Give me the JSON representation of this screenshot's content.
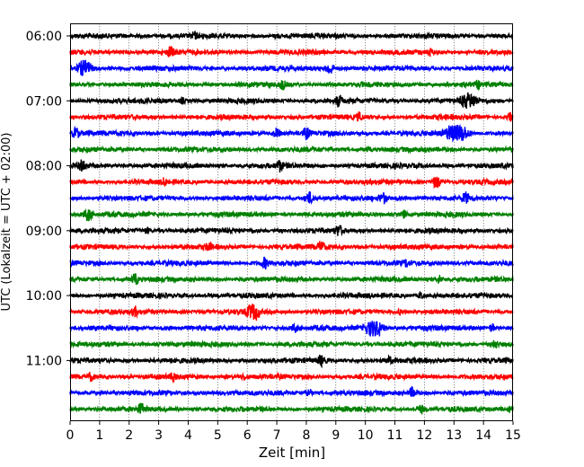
{
  "chart_data": {
    "type": "line",
    "title": "",
    "xlabel": "Zeit  [min]",
    "ylabel": "UTC (Lokalzeit = UTC + 02:00)",
    "xlim": [
      0,
      15
    ],
    "x_ticks": [
      "0",
      "1",
      "2",
      "3",
      "4",
      "5",
      "6",
      "7",
      "8",
      "9",
      "10",
      "11",
      "12",
      "13",
      "14",
      "15"
    ],
    "y_ticks": [
      "06:00",
      "07:00",
      "08:00",
      "09:00",
      "10:00",
      "11:00"
    ],
    "grid": "vertical dotted",
    "trace_interval_minutes": 15,
    "trace_colors": [
      "#000000",
      "#ff0000",
      "#0000ff",
      "#008000"
    ],
    "traces": [
      {
        "start": "06:00",
        "color": "#000000",
        "bursts": [
          [
            4.2,
            0.3
          ],
          [
            7.0,
            0.2
          ]
        ]
      },
      {
        "start": "06:15",
        "color": "#ff0000",
        "bursts": [
          [
            3.4,
            0.5
          ],
          [
            12.2,
            0.3
          ]
        ]
      },
      {
        "start": "06:30",
        "color": "#0000ff",
        "bursts": [
          [
            0.5,
            0.9
          ],
          [
            8.8,
            0.6
          ]
        ]
      },
      {
        "start": "06:45",
        "color": "#008000",
        "bursts": [
          [
            7.2,
            0.4
          ],
          [
            13.8,
            0.3
          ]
        ]
      },
      {
        "start": "07:00",
        "color": "#000000",
        "bursts": [
          [
            3.8,
            0.3
          ],
          [
            9.1,
            0.5
          ],
          [
            13.5,
            1.0
          ]
        ]
      },
      {
        "start": "07:15",
        "color": "#ff0000",
        "bursts": [
          [
            9.8,
            0.4
          ],
          [
            14.9,
            0.4
          ]
        ]
      },
      {
        "start": "07:30",
        "color": "#0000ff",
        "bursts": [
          [
            0.2,
            0.5
          ],
          [
            7.0,
            0.5
          ],
          [
            8.0,
            0.5
          ],
          [
            13.1,
            1.4
          ]
        ]
      },
      {
        "start": "07:45",
        "color": "#008000",
        "bursts": [
          [
            10.1,
            0.2
          ]
        ]
      },
      {
        "start": "08:00",
        "color": "#000000",
        "bursts": [
          [
            0.4,
            0.5
          ],
          [
            7.1,
            0.5
          ]
        ]
      },
      {
        "start": "08:15",
        "color": "#ff0000",
        "bursts": [
          [
            3.2,
            0.3
          ],
          [
            12.4,
            0.6
          ]
        ]
      },
      {
        "start": "08:30",
        "color": "#0000ff",
        "bursts": [
          [
            8.1,
            0.6
          ],
          [
            10.6,
            0.5
          ],
          [
            13.4,
            0.5
          ]
        ]
      },
      {
        "start": "08:45",
        "color": "#008000",
        "bursts": [
          [
            0.6,
            0.6
          ],
          [
            11.3,
            0.4
          ]
        ]
      },
      {
        "start": "09:00",
        "color": "#000000",
        "bursts": [
          [
            2.6,
            0.3
          ],
          [
            9.1,
            0.5
          ]
        ]
      },
      {
        "start": "09:15",
        "color": "#ff0000",
        "bursts": [
          [
            4.7,
            0.4
          ],
          [
            8.5,
            0.5
          ]
        ]
      },
      {
        "start": "09:30",
        "color": "#0000ff",
        "bursts": [
          [
            6.6,
            0.5
          ],
          [
            11.4,
            0.3
          ]
        ]
      },
      {
        "start": "09:45",
        "color": "#008000",
        "bursts": [
          [
            2.2,
            0.5
          ],
          [
            12.5,
            0.4
          ]
        ]
      },
      {
        "start": "10:00",
        "color": "#000000",
        "bursts": [
          [
            11.9,
            0.4
          ]
        ]
      },
      {
        "start": "10:15",
        "color": "#ff0000",
        "bursts": [
          [
            2.2,
            0.4
          ],
          [
            6.2,
            0.9
          ],
          [
            11.2,
            0.3
          ]
        ]
      },
      {
        "start": "10:30",
        "color": "#0000ff",
        "bursts": [
          [
            7.6,
            0.4
          ],
          [
            10.3,
            1.2
          ],
          [
            14.3,
            0.4
          ]
        ]
      },
      {
        "start": "10:45",
        "color": "#008000",
        "bursts": [
          [
            14.4,
            0.4
          ]
        ]
      },
      {
        "start": "11:00",
        "color": "#000000",
        "bursts": [
          [
            8.5,
            0.5
          ],
          [
            10.8,
            0.3
          ]
        ]
      },
      {
        "start": "11:15",
        "color": "#ff0000",
        "bursts": [
          [
            0.7,
            0.4
          ],
          [
            3.5,
            0.4
          ],
          [
            5.9,
            0.3
          ]
        ]
      },
      {
        "start": "11:30",
        "color": "#0000ff",
        "bursts": [
          [
            8.1,
            0.4
          ],
          [
            11.6,
            0.5
          ]
        ]
      },
      {
        "start": "11:45",
        "color": "#008000",
        "bursts": [
          [
            2.4,
            0.5
          ],
          [
            11.9,
            0.4
          ],
          [
            14.9,
            0.4
          ]
        ]
      }
    ]
  }
}
